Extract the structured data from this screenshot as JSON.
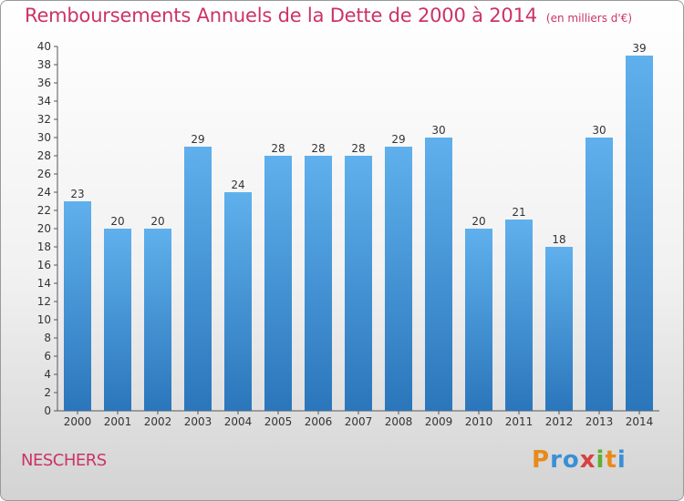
{
  "chart_data": {
    "type": "bar",
    "title": "Remboursements Annuels de la Dette de 2000 à 2014",
    "subtitle": "(en milliers d'€)",
    "categories": [
      "2000",
      "2001",
      "2002",
      "2003",
      "2004",
      "2005",
      "2006",
      "2007",
      "2008",
      "2009",
      "2010",
      "2011",
      "2012",
      "2013",
      "2014"
    ],
    "values": [
      23,
      20,
      20,
      29,
      24,
      28,
      28,
      28,
      29,
      30,
      20,
      21,
      18,
      30,
      39
    ],
    "ylim": [
      0,
      40
    ],
    "yticks": [
      0,
      2,
      4,
      6,
      8,
      10,
      12,
      14,
      16,
      18,
      20,
      22,
      24,
      26,
      28,
      30,
      32,
      34,
      36,
      38,
      40
    ],
    "xlabel": "",
    "ylabel": "",
    "grid": false,
    "bar_color": "#3a8fd6",
    "data_labels": true
  },
  "footer": {
    "commune": "NESCHERS",
    "logo": [
      "P",
      "r",
      "o",
      "x",
      "i",
      "t",
      "i"
    ],
    "logo_colors": [
      "#e88a1a",
      "#3a8fd6",
      "#3a8fd6",
      "#d94040",
      "#5fb033",
      "#e88a1a",
      "#3a8fd6"
    ]
  },
  "colors": {
    "accent": "#cc3366"
  }
}
